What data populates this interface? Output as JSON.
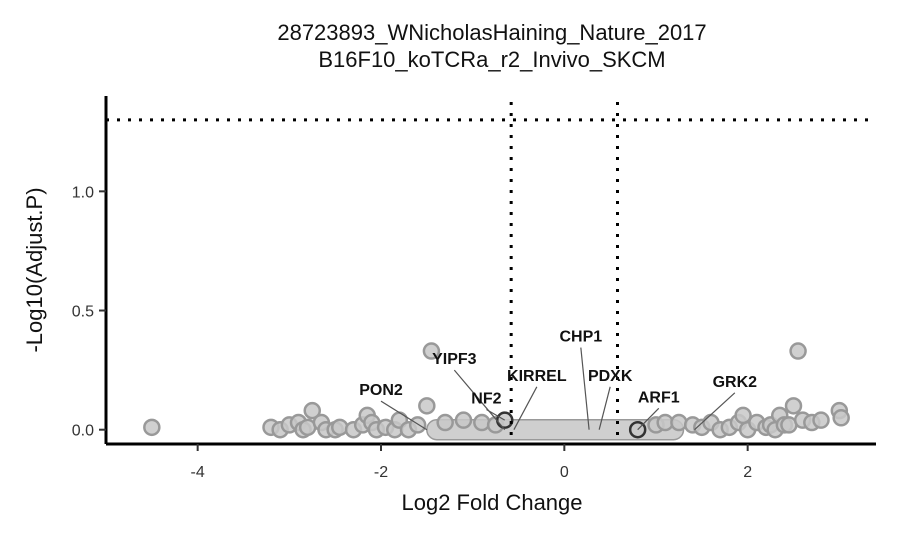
{
  "chart_data": {
    "type": "scatter",
    "title_line1": "28723893_WNicholasHaining_Nature_2017",
    "title_line2": "B16F10_koTCRa_r2_Invivo_SKCM",
    "xlabel": "Log2 Fold Change",
    "ylabel": "-Log10(Adjust.P)",
    "xlim": [
      -5,
      3.4
    ],
    "ylim": [
      -0.06,
      1.4
    ],
    "x_ticks": [
      -4,
      -2,
      0,
      2
    ],
    "x_tick_labels": [
      "-4",
      "-2",
      "0",
      "2"
    ],
    "y_ticks": [
      0.0,
      0.5,
      1.0
    ],
    "y_tick_labels": [
      "0.0",
      "0.5",
      "1.0"
    ],
    "thresholds": {
      "x": [
        -0.58,
        0.58
      ],
      "y": 1.3
    },
    "grid": false,
    "colors": {
      "point_fill": "#c8c8c8",
      "point_stroke": "#999999",
      "dark_stroke": "#333333",
      "dense_band": "#cfcfcf"
    },
    "dense_band": {
      "x_from": -1.5,
      "x_to": 1.3,
      "y": 0.0
    },
    "points": [
      {
        "x": -4.5,
        "y": 0.01
      },
      {
        "x": -3.2,
        "y": 0.01
      },
      {
        "x": -3.1,
        "y": 0.0
      },
      {
        "x": -3.0,
        "y": 0.02
      },
      {
        "x": -2.9,
        "y": 0.03
      },
      {
        "x": -2.85,
        "y": 0.0
      },
      {
        "x": -2.8,
        "y": 0.01
      },
      {
        "x": -2.75,
        "y": 0.08
      },
      {
        "x": -2.65,
        "y": 0.03
      },
      {
        "x": -2.6,
        "y": 0.0
      },
      {
        "x": -2.5,
        "y": 0.0
      },
      {
        "x": -2.45,
        "y": 0.01
      },
      {
        "x": -2.3,
        "y": 0.0
      },
      {
        "x": -2.2,
        "y": 0.02
      },
      {
        "x": -2.15,
        "y": 0.06
      },
      {
        "x": -2.1,
        "y": 0.03
      },
      {
        "x": -2.05,
        "y": 0.0
      },
      {
        "x": -1.95,
        "y": 0.01
      },
      {
        "x": -1.85,
        "y": 0.0
      },
      {
        "x": -1.8,
        "y": 0.04
      },
      {
        "x": -1.7,
        "y": 0.0
      },
      {
        "x": -1.6,
        "y": 0.02
      },
      {
        "x": -1.5,
        "y": 0.1
      },
      {
        "x": -1.45,
        "y": 0.33
      },
      {
        "x": -1.3,
        "y": 0.03
      },
      {
        "x": -1.1,
        "y": 0.04
      },
      {
        "x": -0.9,
        "y": 0.03
      },
      {
        "x": -0.75,
        "y": 0.02
      },
      {
        "x": -0.65,
        "y": 0.04,
        "dark": true
      },
      {
        "x": 0.8,
        "y": 0.0,
        "dark": true
      },
      {
        "x": 1.0,
        "y": 0.02
      },
      {
        "x": 1.1,
        "y": 0.03
      },
      {
        "x": 1.25,
        "y": 0.03
      },
      {
        "x": 1.4,
        "y": 0.02
      },
      {
        "x": 1.5,
        "y": 0.01
      },
      {
        "x": 1.6,
        "y": 0.03
      },
      {
        "x": 1.7,
        "y": 0.0
      },
      {
        "x": 1.8,
        "y": 0.01
      },
      {
        "x": 1.9,
        "y": 0.03
      },
      {
        "x": 1.95,
        "y": 0.06
      },
      {
        "x": 2.0,
        "y": 0.0
      },
      {
        "x": 2.1,
        "y": 0.03
      },
      {
        "x": 2.2,
        "y": 0.01
      },
      {
        "x": 2.25,
        "y": 0.02
      },
      {
        "x": 2.3,
        "y": 0.0
      },
      {
        "x": 2.35,
        "y": 0.06
      },
      {
        "x": 2.4,
        "y": 0.02
      },
      {
        "x": 2.45,
        "y": 0.02
      },
      {
        "x": 2.5,
        "y": 0.1
      },
      {
        "x": 2.55,
        "y": 0.33
      },
      {
        "x": 2.6,
        "y": 0.04
      },
      {
        "x": 2.7,
        "y": 0.03
      },
      {
        "x": 2.8,
        "y": 0.04
      },
      {
        "x": 3.0,
        "y": 0.08
      },
      {
        "x": 3.02,
        "y": 0.05
      }
    ],
    "labels": [
      {
        "text": "PON2",
        "x": -1.5,
        "y": 0.0,
        "lx": -2.0,
        "ly": 0.145
      },
      {
        "text": "YIPF3",
        "x": -0.65,
        "y": 0.0,
        "lx": -1.2,
        "ly": 0.275
      },
      {
        "text": "NF2",
        "x": -0.65,
        "y": 0.04,
        "lx": -0.85,
        "ly": 0.11
      },
      {
        "text": "KIRREL",
        "x": -0.55,
        "y": 0.0,
        "lx": -0.3,
        "ly": 0.205
      },
      {
        "text": "CHP1",
        "x": 0.27,
        "y": 0.0,
        "lx": 0.18,
        "ly": 0.37
      },
      {
        "text": "PDXK",
        "x": 0.38,
        "y": 0.0,
        "lx": 0.5,
        "ly": 0.205
      },
      {
        "text": "ARF1",
        "x": 0.8,
        "y": 0.0,
        "lx": 1.03,
        "ly": 0.115
      },
      {
        "text": "GRK2",
        "x": 1.42,
        "y": 0.0,
        "lx": 1.86,
        "ly": 0.18
      }
    ]
  }
}
